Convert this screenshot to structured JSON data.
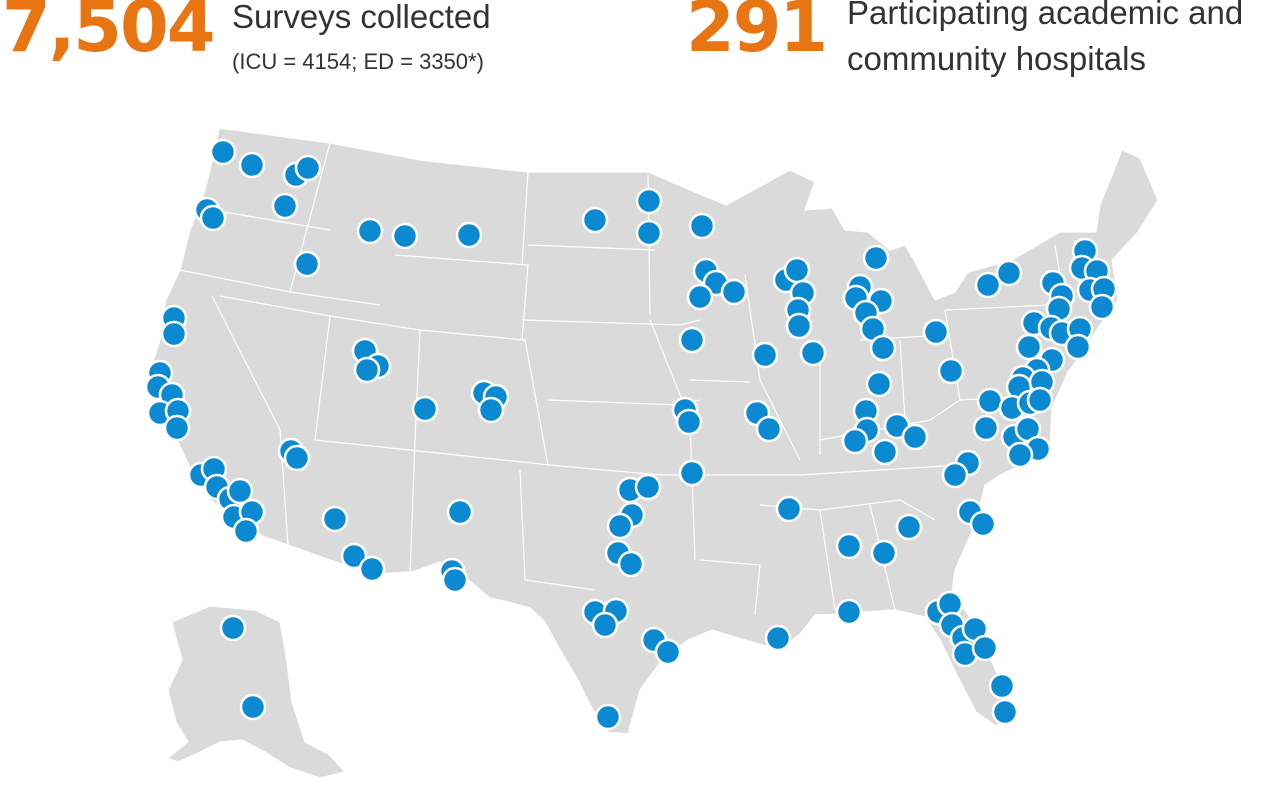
{
  "stats": {
    "surveys_number": "7,504",
    "surveys_label": "Surveys collected",
    "surveys_breakdown": "(ICU = 4154; ED = 3350*)",
    "hospitals_number": "291",
    "hospitals_label": "Participating academic and community hospitals"
  },
  "colors": {
    "accent": "#e87511",
    "marker": "#0b8ad2",
    "land": "#dadada",
    "border": "#ffffff",
    "text": "#333333"
  },
  "map": {
    "region": "United States",
    "marker_type": "participating-hospital"
  }
}
